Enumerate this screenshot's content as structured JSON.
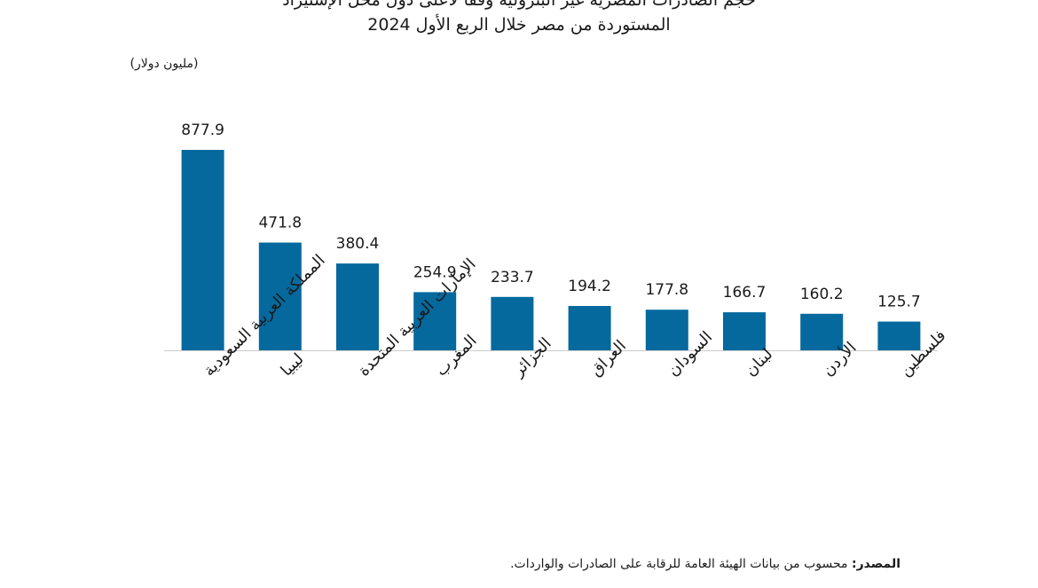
{
  "title_lines": [
    "حجم الصادرات المصرية غير البترولية وفقا لأعلى دول محل الإستيراد",
    "المستوردة من مصر خلال الربع الأول 2024"
  ],
  "unit_label": "(مليون دولار)",
  "source": {
    "label": "المصدر:",
    "text": "محسوب من بيانات الهيئة العامة للرقابة على الصادرات والواردات."
  },
  "colors": {
    "bar": "#05699e",
    "axis": "#cccccc",
    "text": "#1a1a1a"
  },
  "chart_data": {
    "type": "bar",
    "title": "",
    "xlabel": "",
    "ylabel": "(مليون دولار)",
    "categories": [
      "المملكة العربية السعودية",
      "ليبيا",
      "الإمارات العربية المتحدة",
      "المغرب",
      "الجزائر",
      "العراق",
      "السودان",
      "لبنان",
      "الأردن",
      "فلسطين"
    ],
    "values": [
      877.9,
      471.8,
      380.4,
      254.9,
      233.7,
      194.2,
      177.8,
      166.7,
      160.2,
      125.7
    ],
    "data_labels": [
      "877.9",
      "471.8",
      "380.4",
      "254.9",
      "233.7",
      "194.2",
      "177.8",
      "166.7",
      "160.2",
      "125.7"
    ],
    "ylim": [
      0,
      877.9
    ],
    "grid": false,
    "legend": "none"
  }
}
